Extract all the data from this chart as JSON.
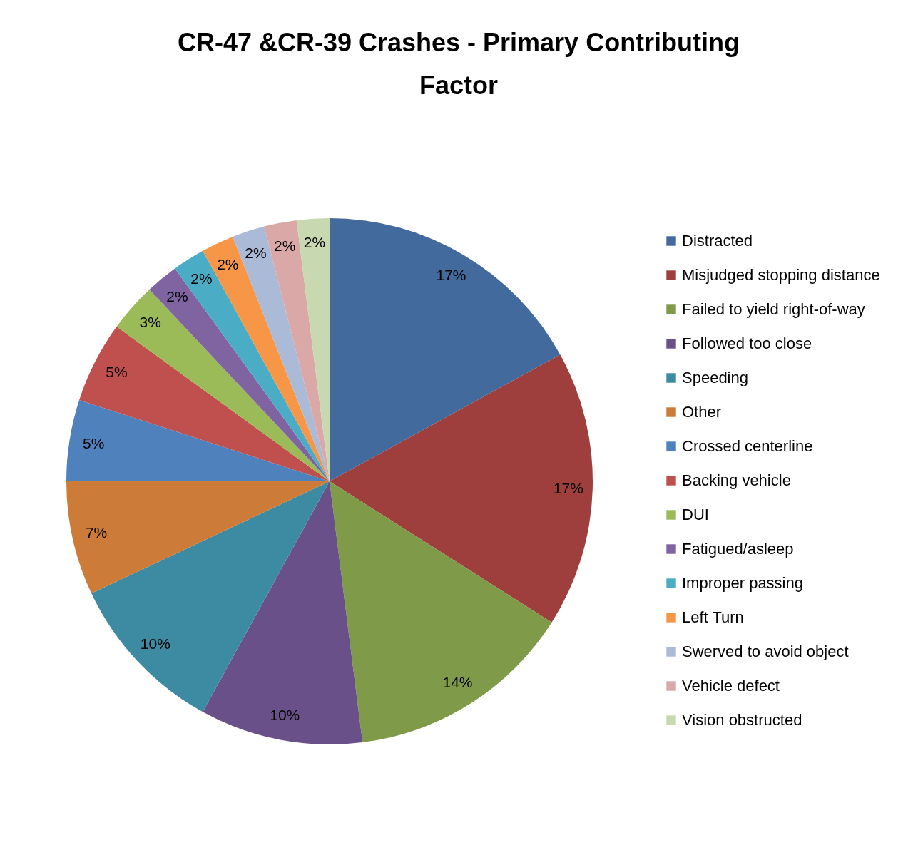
{
  "chart_data": {
    "type": "pie",
    "title": "CR-47 &CR-39 Crashes - Primary Contributing Factor",
    "categories": [
      "Distracted",
      "Misjudged stopping distance",
      "Failed to yield right-of-way",
      "Followed too close",
      "Speeding",
      "Other",
      "Crossed centerline",
      "Backing vehicle",
      "DUI",
      "Fatigued/asleep",
      "Improper passing",
      "Left Turn",
      "Swerved to avoid object",
      "Vehicle defect",
      "Vision obstructed"
    ],
    "values": [
      17,
      17,
      14,
      10,
      10,
      7,
      5,
      5,
      3,
      2,
      2,
      2,
      2,
      2,
      2
    ],
    "value_labels": [
      "17%",
      "17%",
      "14%",
      "10%",
      "10%",
      "7%",
      "5%",
      "5%",
      "3%",
      "2%",
      "2%",
      "2%",
      "2%",
      "2%",
      "2%"
    ],
    "colors": [
      "#426a9c",
      "#9e3f3d",
      "#7f9a48",
      "#6a5089",
      "#3d8ba3",
      "#cd7b38",
      "#4f81bd",
      "#c0504d",
      "#9bbb59",
      "#8064a2",
      "#4bacc6",
      "#f79646",
      "#aabad7",
      "#d9a8a7",
      "#c8d8b0"
    ],
    "legend": "right"
  }
}
